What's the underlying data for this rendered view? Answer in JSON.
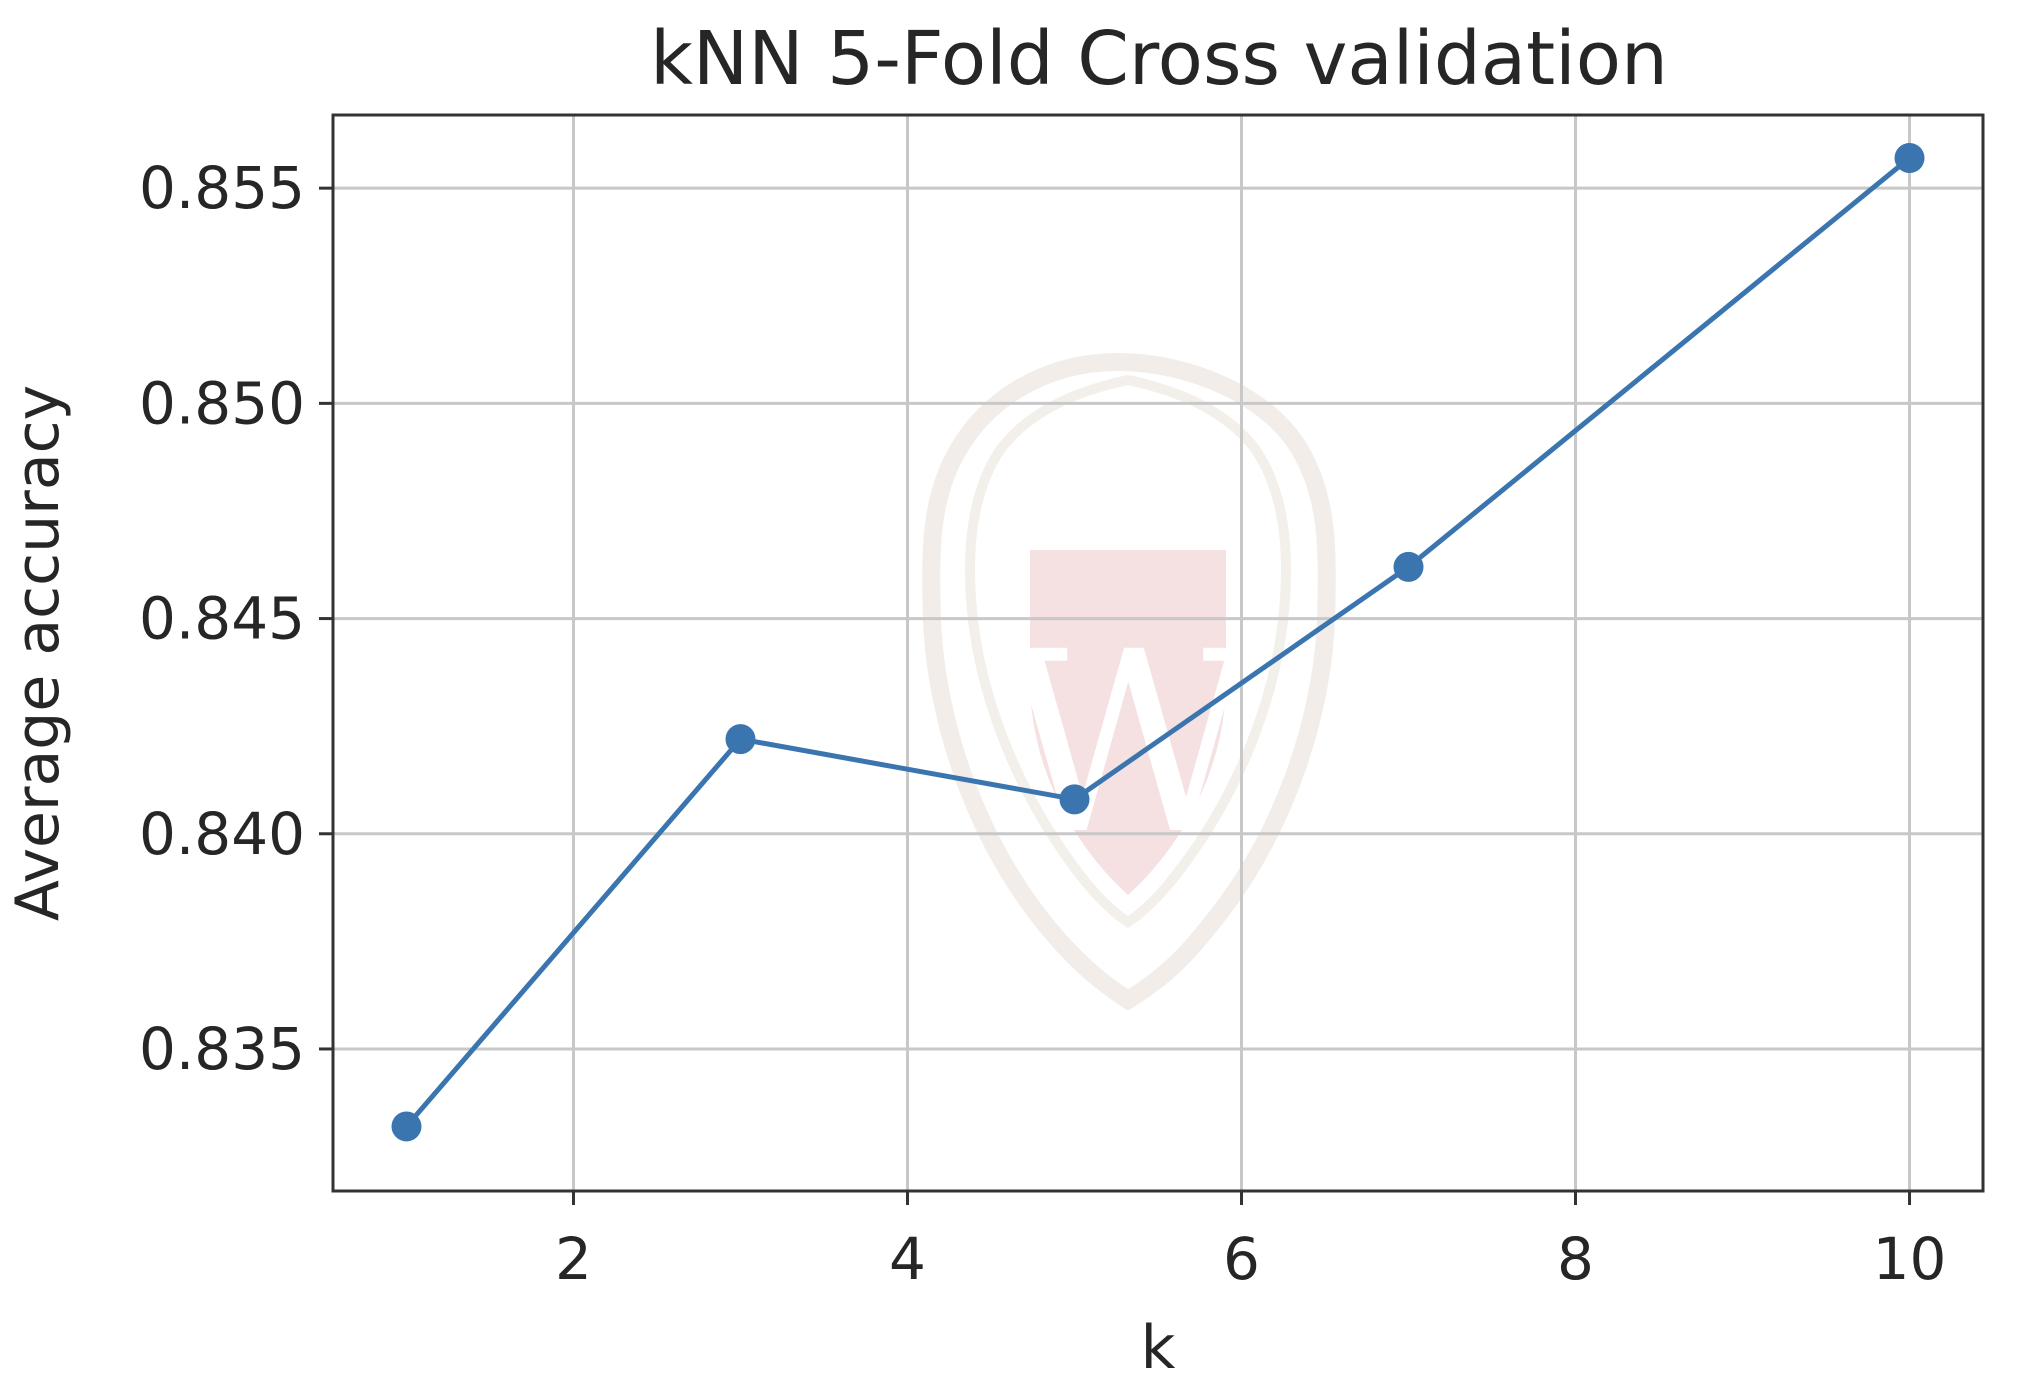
{
  "chart_data": {
    "type": "line",
    "title": "kNN 5-Fold Cross validation",
    "xlabel": "k",
    "ylabel": "Average accuracy",
    "xlim": [
      0.56,
      10.44
    ],
    "ylim": [
      0.8317,
      0.8567
    ],
    "xticks": [
      2,
      4,
      6,
      8,
      10
    ],
    "yticks": [
      0.835,
      0.84,
      0.845,
      0.85,
      0.855
    ],
    "grid": true,
    "legend": "none",
    "color": "#3b75af",
    "series": [
      {
        "x": [
          1,
          3,
          5,
          7,
          10
        ],
        "y": [
          0.8332,
          0.8422,
          0.8408,
          0.8462,
          0.8557
        ],
        "marker": "circle"
      }
    ]
  },
  "watermark": {
    "description_icon": "university-crest-watermark",
    "letter": "W",
    "colors": {
      "crest": "#efe9e3",
      "shield": "#f3d9dc",
      "letter": "#ffffff"
    }
  }
}
